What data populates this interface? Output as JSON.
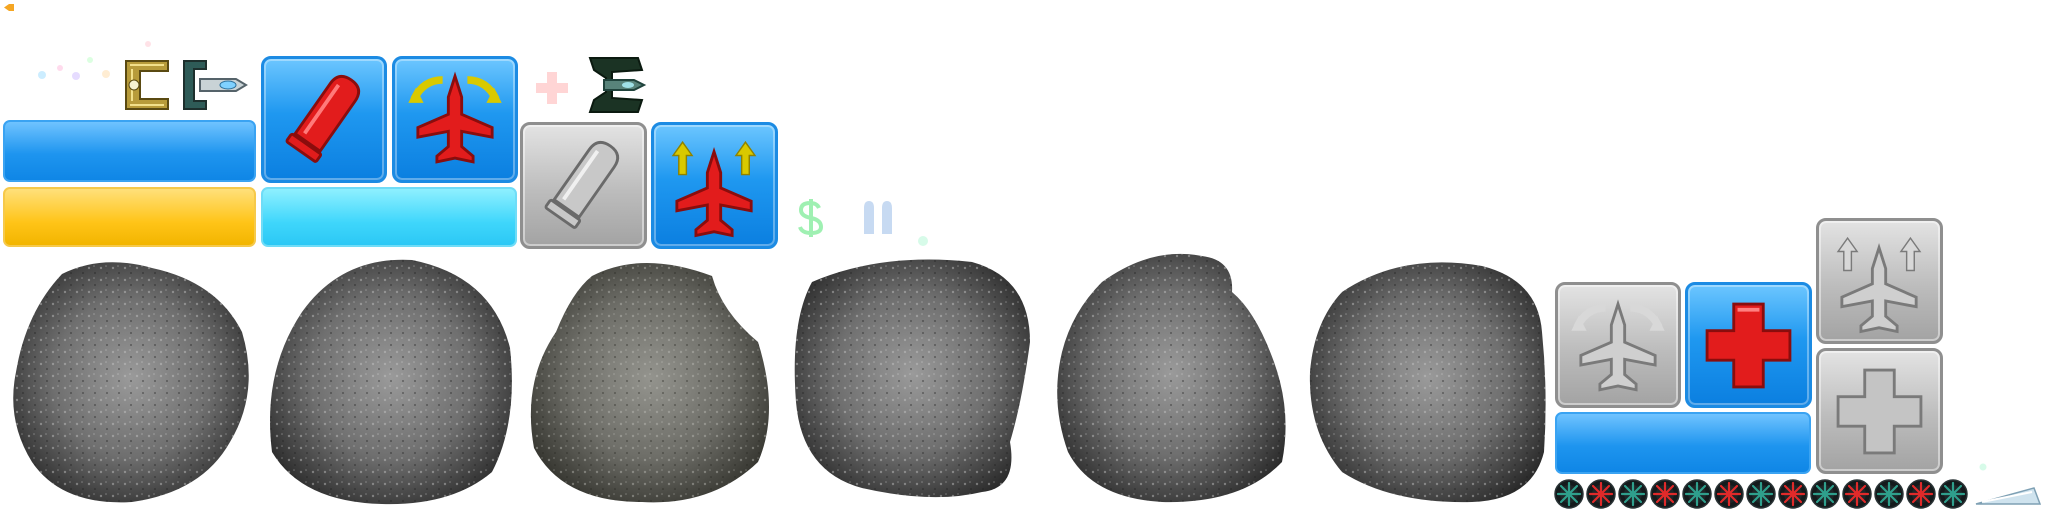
{
  "sheet": {
    "background": "#ffffff",
    "accents": {
      "blue_tile": "#1f98f0",
      "gray_tile": "#b4b4b4",
      "red_icon": "#e01010",
      "yellow_arrow": "#e6d400",
      "rock": "#6a6a6a"
    }
  },
  "sprites": {
    "ships": [
      "bracket-ship-gold",
      "bracket-ship-silver",
      "bracket-ship-green"
    ],
    "powerups_active": [
      "bullet-powerup",
      "rotate-ship-powerup",
      "thrust-ship-powerup",
      "health-powerup"
    ],
    "powerups_inactive": [
      "bullet-powerup-disabled",
      "rotate-ship-powerup-disabled",
      "thrust-ship-powerup-disabled",
      "health-powerup-disabled"
    ],
    "bars": [
      "blue-bar",
      "yellow-bar",
      "cyan-bar",
      "blue-bar-small"
    ],
    "faint_glyphs": [
      "plus-icon",
      "dollar-icon",
      "ammo-icon"
    ],
    "asteroid_count": 6,
    "mine_count": 13,
    "mine_colors": [
      "#2f9f8c",
      "#e02a2a"
    ],
    "misc": [
      "blade-shard",
      "orange-pixel"
    ]
  }
}
